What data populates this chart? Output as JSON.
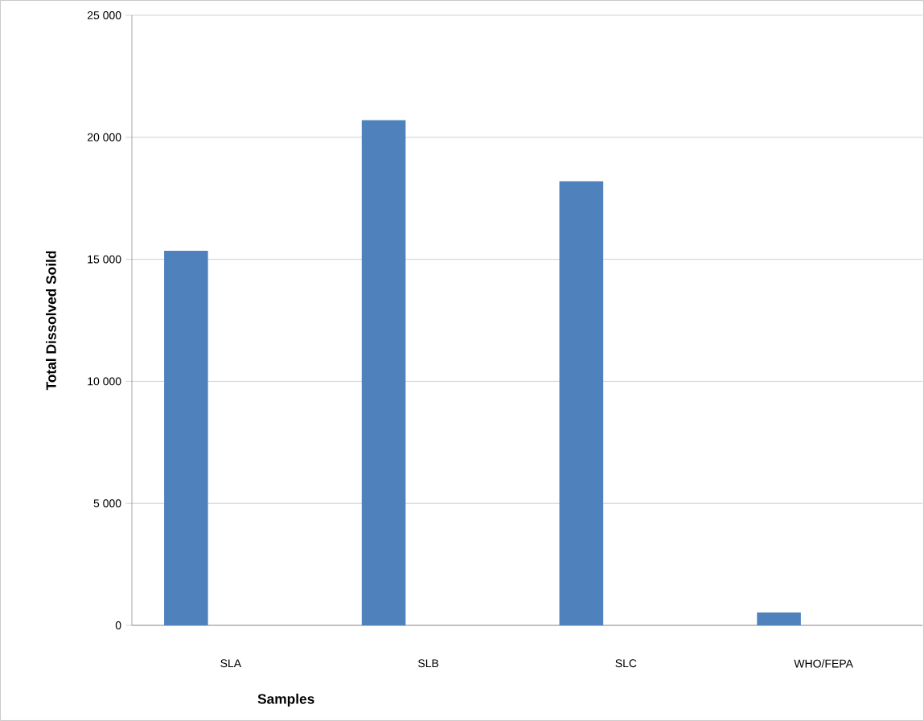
{
  "chart_data": {
    "type": "bar",
    "xlabel": "Samples",
    "ylabel": "Total Dissolved Soild",
    "categories": [
      "SLA",
      "SLB",
      "SLC",
      "WHO/FEPA"
    ],
    "values": [
      15350,
      20700,
      18200,
      530
    ],
    "color": "#4f81bd",
    "ylim": [
      0,
      25000
    ],
    "yticks": [
      {
        "value": 0,
        "label": "0"
      },
      {
        "value": 5000,
        "label": "5 000"
      },
      {
        "value": 10000,
        "label": "10 000"
      },
      {
        "value": 15000,
        "label": "15 000"
      },
      {
        "value": 20000,
        "label": "20 000"
      },
      {
        "value": 25000,
        "label": "25 000"
      }
    ],
    "grid": "y"
  }
}
